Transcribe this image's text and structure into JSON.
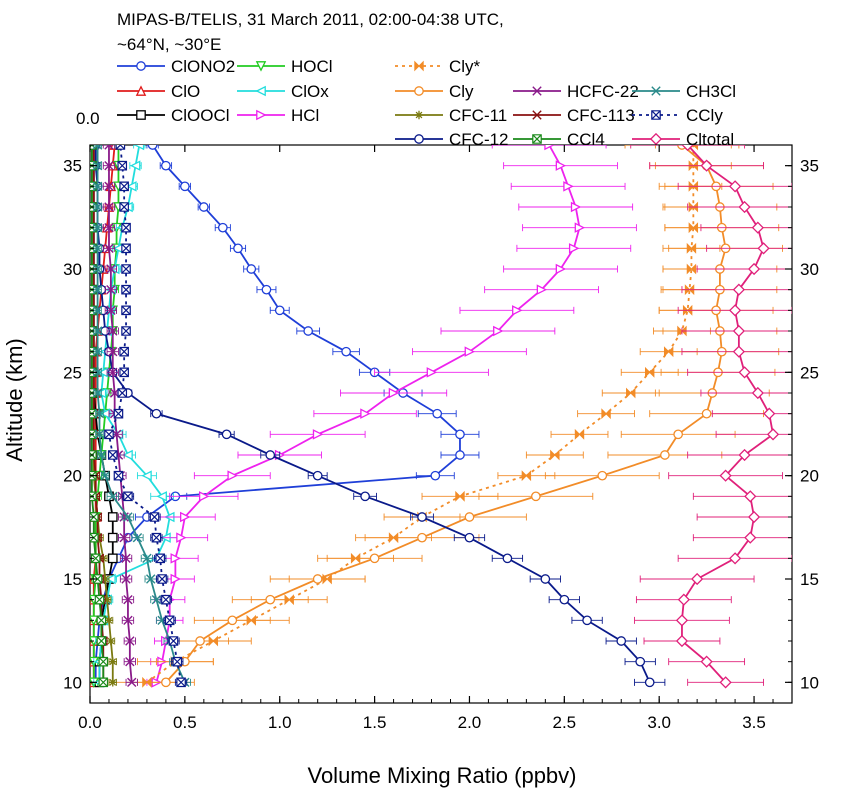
{
  "chart_data": {
    "type": "line",
    "title_lines": [
      "MIPAS-B/TELIS, 31 March 2011, 02:00-04:38 UTC,",
      "~64°N, ~30°E"
    ],
    "xlabel": "Volume Mixing Ratio (ppbv)",
    "ylabel": "Altitude (km)",
    "xlim": [
      0.0,
      3.7
    ],
    "ylim": [
      9,
      36
    ],
    "x_ticks": [
      0.0,
      0.5,
      1.0,
      1.5,
      2.0,
      2.5,
      3.0,
      3.5
    ],
    "x_tick_labels": [
      "0.0",
      "0.5",
      "1.0",
      "1.5",
      "2.0",
      "2.5",
      "3.0",
      "3.5"
    ],
    "y_ticks": [
      10,
      15,
      20,
      25,
      30,
      35
    ],
    "y_tick_labels": [
      "10",
      "15",
      "20",
      "25",
      "30",
      "35"
    ],
    "y_top_label": "0.0",
    "grid": false,
    "legend_position": "top",
    "altitudes": [
      10,
      11,
      12,
      13,
      14,
      15,
      16,
      17,
      18,
      19,
      20,
      21,
      22,
      23,
      24,
      25,
      26,
      27,
      28,
      29,
      30,
      31,
      32,
      33,
      34,
      35,
      36
    ],
    "series": [
      {
        "name": "ClONO2",
        "color": "#1f3fd8",
        "marker": "circle",
        "dash": false,
        "values": [
          0.03,
          0.03,
          0.04,
          0.05,
          0.07,
          0.1,
          0.15,
          0.2,
          0.3,
          0.45,
          1.82,
          1.95,
          1.95,
          1.83,
          1.65,
          1.5,
          1.35,
          1.15,
          1.0,
          0.93,
          0.85,
          0.78,
          0.7,
          0.6,
          0.5,
          0.4,
          0.33
        ],
        "xerr": [
          0.02,
          0.02,
          0.02,
          0.02,
          0.02,
          0.03,
          0.04,
          0.05,
          0.06,
          0.06,
          0.1,
          0.1,
          0.1,
          0.1,
          0.1,
          0.08,
          0.07,
          0.06,
          0.05,
          0.05,
          0.04,
          0.04,
          0.04,
          0.03,
          0.03,
          0.03,
          0.03
        ]
      },
      {
        "name": "ClO",
        "color": "#e01b1b",
        "marker": "triangle-up",
        "dash": false,
        "values": [
          0.02,
          0.02,
          0.02,
          0.02,
          0.02,
          0.02,
          0.03,
          0.03,
          0.03,
          0.03,
          0.03,
          0.03,
          0.03,
          0.03,
          0.03,
          0.03,
          0.03,
          0.04,
          0.05,
          0.06,
          0.07,
          0.08,
          0.09,
          0.1,
          0.11,
          0.12,
          0.13
        ],
        "xerr": [
          0.02,
          0.02,
          0.02,
          0.02,
          0.02,
          0.02,
          0.02,
          0.02,
          0.02,
          0.02,
          0.02,
          0.02,
          0.02,
          0.02,
          0.02,
          0.02,
          0.02,
          0.02,
          0.02,
          0.02,
          0.02,
          0.02,
          0.02,
          0.02,
          0.02,
          0.02,
          0.02
        ]
      },
      {
        "name": "ClOOCl",
        "color": "#000000",
        "marker": "square",
        "dash": false,
        "values": [
          0.05,
          0.05,
          0.06,
          0.06,
          0.08,
          0.1,
          0.12,
          0.12,
          0.12,
          0.1,
          0.08,
          0.06,
          0.04,
          0.03,
          0.02,
          0.02,
          0.02,
          0.02,
          0.02,
          0.02,
          0.02,
          0.02,
          0.02,
          0.02,
          0.02,
          0.02,
          0.02
        ],
        "xerr": [
          0.02,
          0.02,
          0.02,
          0.02,
          0.02,
          0.02,
          0.02,
          0.02,
          0.02,
          0.02,
          0.02,
          0.02,
          0.02,
          0.02,
          0.02,
          0.02,
          0.02,
          0.02,
          0.02,
          0.02,
          0.02,
          0.02,
          0.02,
          0.02,
          0.02,
          0.02,
          0.02
        ]
      },
      {
        "name": "HOCl",
        "color": "#22cc22",
        "marker": "triangle-down",
        "dash": false,
        "values": [
          0.02,
          0.02,
          0.02,
          0.02,
          0.02,
          0.03,
          0.03,
          0.03,
          0.03,
          0.04,
          0.05,
          0.06,
          0.07,
          0.08,
          0.09,
          0.1,
          0.11,
          0.12,
          0.12,
          0.13,
          0.13,
          0.14,
          0.14,
          0.15,
          0.15,
          0.15,
          0.15
        ],
        "xerr": [
          0.02,
          0.02,
          0.02,
          0.02,
          0.02,
          0.02,
          0.02,
          0.02,
          0.02,
          0.02,
          0.02,
          0.02,
          0.02,
          0.02,
          0.02,
          0.02,
          0.02,
          0.02,
          0.02,
          0.02,
          0.02,
          0.02,
          0.02,
          0.02,
          0.02,
          0.02,
          0.02
        ]
      },
      {
        "name": "ClOx",
        "color": "#22dddd",
        "marker": "triangle-left",
        "dash": false,
        "values": [
          0.05,
          0.05,
          0.06,
          0.07,
          0.09,
          0.11,
          0.35,
          0.4,
          0.42,
          0.38,
          0.3,
          0.2,
          0.15,
          0.08,
          0.06,
          0.07,
          0.08,
          0.09,
          0.1,
          0.11,
          0.13,
          0.15,
          0.17,
          0.2,
          0.22,
          0.24,
          0.26
        ],
        "xerr": [
          0.03,
          0.03,
          0.03,
          0.03,
          0.03,
          0.03,
          0.05,
          0.06,
          0.06,
          0.06,
          0.05,
          0.04,
          0.04,
          0.03,
          0.03,
          0.03,
          0.03,
          0.03,
          0.03,
          0.03,
          0.03,
          0.03,
          0.03,
          0.03,
          0.03,
          0.03,
          0.03
        ]
      },
      {
        "name": "HCl",
        "color": "#ee22ee",
        "marker": "triangle-right",
        "dash": false,
        "values": [
          0.35,
          0.38,
          0.4,
          0.42,
          0.42,
          0.45,
          0.45,
          0.48,
          0.5,
          0.6,
          0.75,
          1.0,
          1.2,
          1.45,
          1.6,
          1.8,
          2.0,
          2.15,
          2.25,
          2.38,
          2.48,
          2.55,
          2.58,
          2.56,
          2.52,
          2.48,
          2.42
        ],
        "xerr": [
          0.05,
          0.06,
          0.06,
          0.07,
          0.08,
          0.1,
          0.12,
          0.14,
          0.16,
          0.18,
          0.2,
          0.22,
          0.25,
          0.27,
          0.28,
          0.3,
          0.3,
          0.3,
          0.3,
          0.3,
          0.3,
          0.3,
          0.3,
          0.3,
          0.3,
          0.3,
          0.3
        ]
      },
      {
        "name": "Cly*",
        "color": "#f28c28",
        "marker": "bowtie",
        "dash": true,
        "values": [
          0.3,
          0.45,
          0.65,
          0.85,
          1.05,
          1.25,
          1.4,
          1.6,
          1.75,
          1.95,
          2.3,
          2.45,
          2.58,
          2.72,
          2.85,
          2.95,
          3.05,
          3.12,
          3.15,
          3.16,
          3.17,
          3.17,
          3.18,
          3.18,
          3.18,
          3.18,
          3.18
        ],
        "xerr": [
          0.2,
          0.2,
          0.2,
          0.2,
          0.2,
          0.2,
          0.2,
          0.2,
          0.2,
          0.2,
          0.15,
          0.15,
          0.15,
          0.15,
          0.15,
          0.15,
          0.15,
          0.15,
          0.15,
          0.15,
          0.15,
          0.15,
          0.15,
          0.15,
          0.15,
          0.2,
          0.2
        ]
      },
      {
        "name": "Cly",
        "color": "#f28c28",
        "marker": "circle",
        "dash": false,
        "values": [
          0.4,
          0.5,
          0.58,
          0.75,
          0.95,
          1.2,
          1.5,
          1.75,
          2.0,
          2.35,
          2.7,
          3.03,
          3.1,
          3.25,
          3.28,
          3.31,
          3.33,
          3.32,
          3.3,
          3.32,
          3.32,
          3.35,
          3.33,
          3.32,
          3.3,
          3.25,
          3.12
        ],
        "xerr": [
          0.15,
          0.15,
          0.15,
          0.2,
          0.2,
          0.25,
          0.25,
          0.3,
          0.3,
          0.3,
          0.3,
          0.3,
          0.3,
          0.3,
          0.3,
          0.3,
          0.3,
          0.3,
          0.3,
          0.3,
          0.3,
          0.3,
          0.3,
          0.3,
          0.3,
          0.3,
          0.3
        ]
      },
      {
        "name": "CFC-11",
        "color": "#7a7a10",
        "marker": "star",
        "dash": false,
        "values": [
          0.12,
          0.12,
          0.11,
          0.1,
          0.09,
          0.08,
          0.07,
          0.05,
          0.04,
          0.03,
          0.02,
          0.02,
          0.02,
          0.01,
          0.01,
          0.01,
          0.01,
          0.01,
          0.01,
          0.01,
          0.01,
          0.01,
          0.01,
          0.01,
          0.01,
          0.01,
          0.01
        ],
        "xerr": [
          0.02,
          0.02,
          0.02,
          0.02,
          0.02,
          0.02,
          0.02,
          0.02,
          0.02,
          0.02,
          0.02,
          0.02,
          0.02,
          0.02,
          0.02,
          0.02,
          0.02,
          0.02,
          0.02,
          0.02,
          0.02,
          0.02,
          0.02,
          0.02,
          0.02,
          0.02,
          0.02
        ]
      },
      {
        "name": "CFC-12",
        "color": "#0a1a8a",
        "marker": "circle",
        "dash": false,
        "values": [
          2.95,
          2.9,
          2.8,
          2.62,
          2.5,
          2.4,
          2.2,
          2.0,
          1.75,
          1.45,
          1.2,
          0.95,
          0.72,
          0.35,
          0.2,
          0.12,
          0.1,
          0.08,
          0.07,
          0.06,
          0.05,
          0.05,
          0.04,
          0.04,
          0.04,
          0.03,
          0.03
        ],
        "xerr": [
          0.08,
          0.08,
          0.08,
          0.08,
          0.08,
          0.08,
          0.08,
          0.08,
          0.06,
          0.06,
          0.05,
          0.05,
          0.04,
          0.03,
          0.02,
          0.02,
          0.02,
          0.02,
          0.02,
          0.02,
          0.02,
          0.02,
          0.02,
          0.02,
          0.02,
          0.02,
          0.02
        ]
      },
      {
        "name": "HCFC-22",
        "color": "#8a1a8a",
        "marker": "x",
        "dash": false,
        "values": [
          0.22,
          0.21,
          0.21,
          0.2,
          0.2,
          0.19,
          0.19,
          0.18,
          0.18,
          0.17,
          0.16,
          0.15,
          0.14,
          0.13,
          0.13,
          0.12,
          0.12,
          0.12,
          0.11,
          0.11,
          0.11,
          0.1,
          0.1,
          0.1,
          0.1,
          0.1,
          0.1
        ],
        "xerr": [
          0.03,
          0.03,
          0.03,
          0.03,
          0.03,
          0.03,
          0.03,
          0.03,
          0.03,
          0.03,
          0.03,
          0.03,
          0.03,
          0.03,
          0.03,
          0.03,
          0.03,
          0.03,
          0.03,
          0.03,
          0.03,
          0.03,
          0.03,
          0.03,
          0.03,
          0.03,
          0.03
        ]
      },
      {
        "name": "CFC-113",
        "color": "#8a1010",
        "marker": "x",
        "dash": false,
        "values": [
          0.07,
          0.07,
          0.07,
          0.06,
          0.06,
          0.05,
          0.05,
          0.04,
          0.04,
          0.03,
          0.03,
          0.02,
          0.02,
          0.02,
          0.02,
          0.02,
          0.02,
          0.02,
          0.02,
          0.02,
          0.02,
          0.02,
          0.02,
          0.02,
          0.02,
          0.02,
          0.02
        ],
        "xerr": [
          0.02,
          0.02,
          0.02,
          0.02,
          0.02,
          0.02,
          0.02,
          0.02,
          0.02,
          0.02,
          0.02,
          0.02,
          0.02,
          0.02,
          0.02,
          0.02,
          0.02,
          0.02,
          0.02,
          0.02,
          0.02,
          0.02,
          0.02,
          0.02,
          0.02,
          0.02,
          0.02
        ]
      },
      {
        "name": "CCl4",
        "color": "#1a8a1a",
        "marker": "boxx",
        "dash": false,
        "values": [
          0.07,
          0.07,
          0.06,
          0.06,
          0.05,
          0.04,
          0.03,
          0.02,
          0.02,
          0.01,
          0.01,
          0.01,
          0.01,
          0.01,
          0.01,
          0.01,
          0.01,
          0.01,
          0.01,
          0.01,
          0.01,
          0.01,
          0.01,
          0.01,
          0.01,
          0.01,
          0.01
        ],
        "xerr": [
          0.02,
          0.02,
          0.02,
          0.02,
          0.02,
          0.02,
          0.02,
          0.02,
          0.02,
          0.02,
          0.02,
          0.02,
          0.02,
          0.02,
          0.02,
          0.02,
          0.02,
          0.02,
          0.02,
          0.02,
          0.02,
          0.02,
          0.02,
          0.02,
          0.02,
          0.02,
          0.02
        ]
      },
      {
        "name": "CH3Cl",
        "color": "#2a8a8a",
        "marker": "x",
        "dash": false,
        "values": [
          0.5,
          0.45,
          0.42,
          0.38,
          0.35,
          0.32,
          0.3,
          0.25,
          0.2,
          0.12,
          0.08,
          0.06,
          0.05,
          0.05,
          0.04,
          0.04,
          0.04,
          0.04,
          0.04,
          0.04,
          0.04,
          0.04,
          0.04,
          0.04,
          0.04,
          0.04,
          0.04
        ],
        "xerr": [
          0.03,
          0.03,
          0.03,
          0.03,
          0.03,
          0.03,
          0.03,
          0.03,
          0.03,
          0.03,
          0.02,
          0.02,
          0.02,
          0.02,
          0.02,
          0.02,
          0.02,
          0.02,
          0.02,
          0.02,
          0.02,
          0.02,
          0.02,
          0.02,
          0.02,
          0.02,
          0.02
        ]
      },
      {
        "name": "CCly",
        "color": "#0a1a8a",
        "marker": "boxx",
        "dash": true,
        "values": [
          0.48,
          0.46,
          0.44,
          0.42,
          0.4,
          0.38,
          0.37,
          0.35,
          0.34,
          0.2,
          0.15,
          0.12,
          0.1,
          0.15,
          0.17,
          0.18,
          0.18,
          0.19,
          0.19,
          0.19,
          0.19,
          0.19,
          0.19,
          0.18,
          0.18,
          0.17,
          0.16
        ],
        "xerr": [
          0.03,
          0.03,
          0.03,
          0.03,
          0.03,
          0.03,
          0.03,
          0.03,
          0.03,
          0.03,
          0.02,
          0.02,
          0.02,
          0.02,
          0.02,
          0.02,
          0.02,
          0.02,
          0.02,
          0.02,
          0.02,
          0.02,
          0.02,
          0.02,
          0.02,
          0.02,
          0.02
        ]
      },
      {
        "name": "Cltotal",
        "color": "#e0207a",
        "marker": "diamond",
        "dash": false,
        "values": [
          3.35,
          3.25,
          3.12,
          3.12,
          3.13,
          3.2,
          3.4,
          3.48,
          3.5,
          3.48,
          3.35,
          3.45,
          3.6,
          3.58,
          3.52,
          3.45,
          3.42,
          3.42,
          3.4,
          3.42,
          3.5,
          3.55,
          3.52,
          3.45,
          3.4,
          3.25,
          3.15
        ],
        "xerr": [
          0.2,
          0.2,
          0.2,
          0.25,
          0.25,
          0.3,
          0.3,
          0.3,
          0.3,
          0.3,
          0.3,
          0.3,
          0.3,
          0.3,
          0.3,
          0.3,
          0.3,
          0.3,
          0.3,
          0.3,
          0.3,
          0.3,
          0.3,
          0.3,
          0.3,
          0.3,
          0.3
        ]
      }
    ],
    "legend_layout": [
      [
        "ClONO2",
        "HOCl",
        "Cly*",
        ""
      ],
      [
        "ClO",
        "ClOx",
        "Cly",
        "HCFC-22",
        "CH3Cl"
      ],
      [
        "ClOOCl",
        "HCl",
        "CFC-11",
        "CFC-113",
        "CCly"
      ],
      [
        "",
        "",
        "CFC-12",
        "CCl4",
        "Cltotal"
      ]
    ]
  }
}
